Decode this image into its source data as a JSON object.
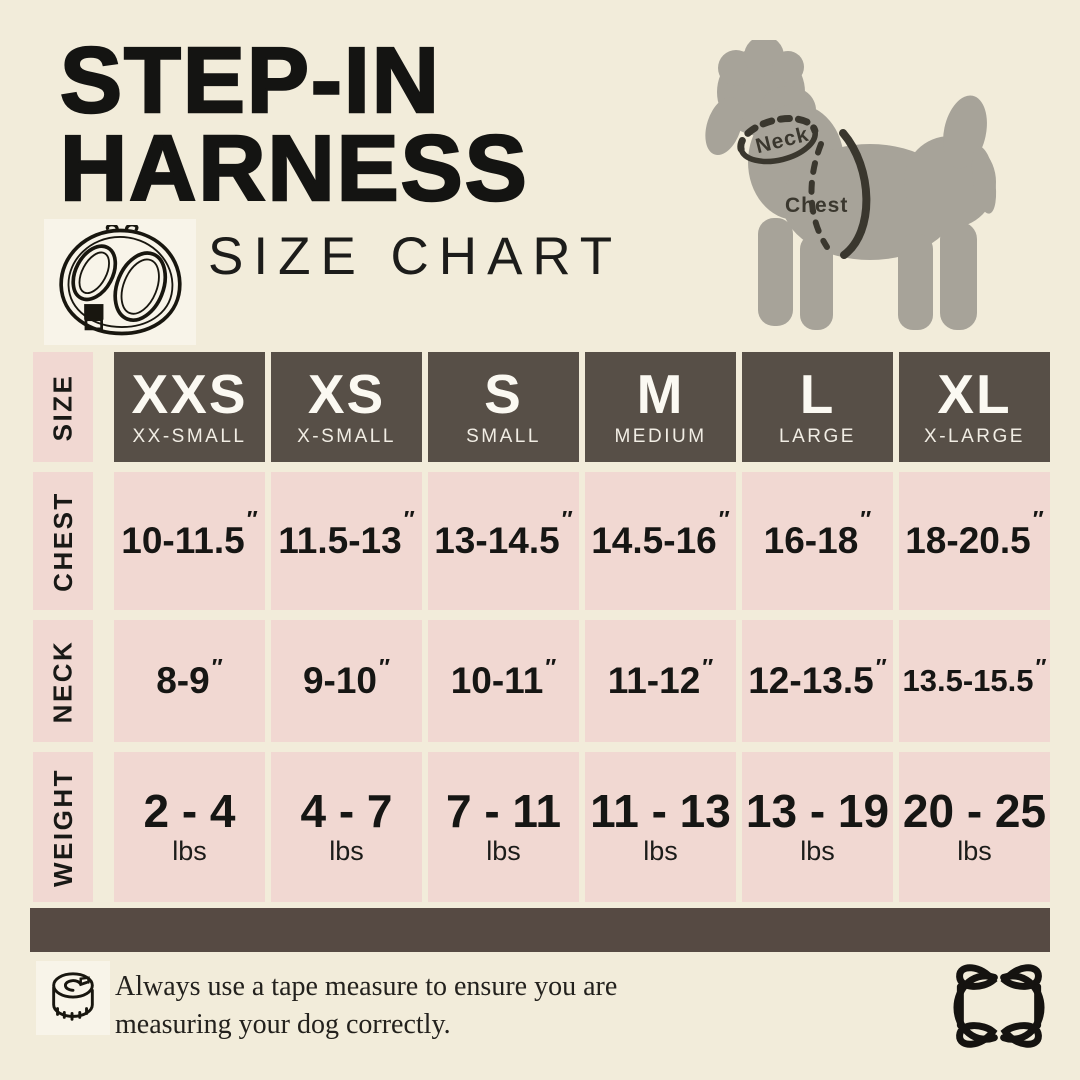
{
  "page": {
    "background": "#f2ecda",
    "pink": "#f1d8d2",
    "brown": "#574f47",
    "bar_brown": "#564a43",
    "dog_gray": "#a7a399"
  },
  "header": {
    "title_line1": "STEP-IN",
    "title_line2": "HARNESS",
    "subtitle": "SIZE CHART"
  },
  "icons": {
    "harness": "harness-outline-icon",
    "tape": "tape-measure-icon",
    "logo": "brand-monogram-icon"
  },
  "diagram": {
    "neck_label": "Neck",
    "chest_label": "Chest"
  },
  "table": {
    "row_labels": {
      "size": "SIZE",
      "chest": "CHEST",
      "neck": "NECK",
      "weight": "WEIGHT"
    },
    "inch_mark": "″",
    "weight_unit": "lbs",
    "sizes": [
      {
        "abbr": "XXS",
        "name": "XX-SMALL",
        "chest": "10-11.5",
        "neck": "8-9",
        "weight": "2 - 4"
      },
      {
        "abbr": "XS",
        "name": "X-SMALL",
        "chest": "11.5-13",
        "neck": "9-10",
        "weight": "4 - 7"
      },
      {
        "abbr": "S",
        "name": "SMALL",
        "chest": "13-14.5",
        "neck": "10-11",
        "weight": "7 - 11"
      },
      {
        "abbr": "M",
        "name": "MEDIUM",
        "chest": "14.5-16",
        "neck": "11-12",
        "weight": "11 - 13"
      },
      {
        "abbr": "L",
        "name": "LARGE",
        "chest": "16-18",
        "neck": "12-13.5",
        "weight": "13 - 19"
      },
      {
        "abbr": "XL",
        "name": "X-LARGE",
        "chest": "18-20.5",
        "neck": "13.5-15.5",
        "weight": "20 - 25"
      }
    ]
  },
  "footer": {
    "note": "Always use a tape measure to ensure you are measuring your dog correctly."
  },
  "chart_data": {
    "type": "table",
    "title": "STEP-IN HARNESS SIZE CHART",
    "columns": [
      "XXS (XX-SMALL)",
      "XS (X-SMALL)",
      "S (SMALL)",
      "M (MEDIUM)",
      "L (LARGE)",
      "XL (X-LARGE)"
    ],
    "rows": [
      {
        "label": "CHEST (inches)",
        "values": [
          "10-11.5",
          "11.5-13",
          "13-14.5",
          "14.5-16",
          "16-18",
          "18-20.5"
        ]
      },
      {
        "label": "NECK (inches)",
        "values": [
          "8-9",
          "9-10",
          "10-11",
          "11-12",
          "12-13.5",
          "13.5-15.5"
        ]
      },
      {
        "label": "WEIGHT (lbs)",
        "values": [
          "2-4",
          "4-7",
          "7-11",
          "11-13",
          "13-19",
          "20-25"
        ]
      }
    ]
  }
}
